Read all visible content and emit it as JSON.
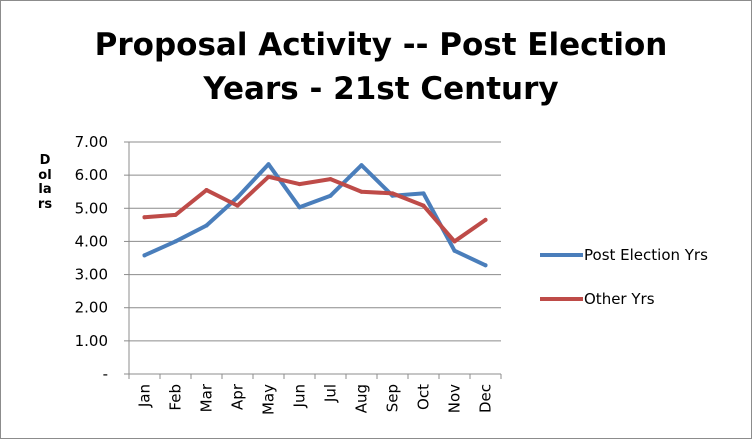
{
  "chart_data": {
    "type": "line",
    "title": "Proposal Activity -- Post Election\nYears - 21st Century",
    "ylabel": "Dollars",
    "xlabel": "",
    "categories": [
      "Jan",
      "Feb",
      "Mar",
      "Apr",
      "May",
      "Jun",
      "Jul",
      "Aug",
      "Sep",
      "Oct",
      "Nov",
      "Dec"
    ],
    "ylim": [
      0,
      7
    ],
    "yticks": [
      "-",
      "1.00",
      "2.00",
      "3.00",
      "4.00",
      "5.00",
      "6.00",
      "7.00"
    ],
    "grid": true,
    "legend_position": "right",
    "series": [
      {
        "name": "Post Election Yrs",
        "color": "#4a7ebb",
        "values": [
          3.58,
          4.0,
          4.48,
          5.33,
          6.33,
          5.03,
          5.38,
          6.3,
          5.38,
          5.45,
          3.72,
          3.28
        ]
      },
      {
        "name": "Other Yrs",
        "color": "#be4b48",
        "values": [
          4.73,
          4.8,
          5.55,
          5.08,
          5.95,
          5.73,
          5.88,
          5.5,
          5.45,
          5.08,
          4.0,
          4.65
        ]
      }
    ]
  }
}
